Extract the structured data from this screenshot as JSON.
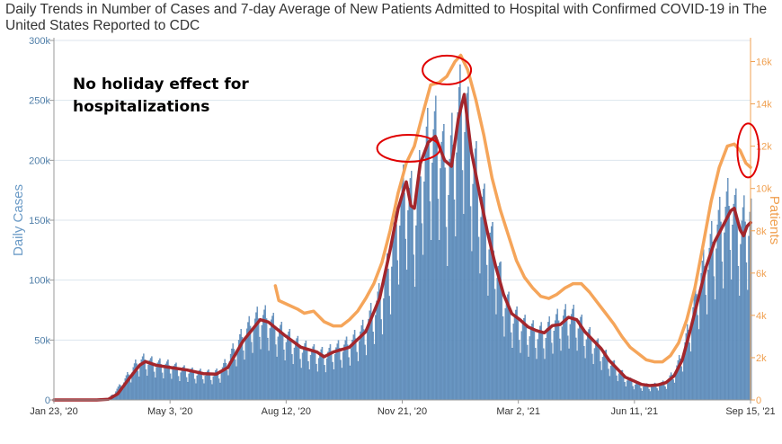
{
  "chart_data": {
    "type": "bar+line",
    "title": "Daily Trends in Number of Cases and 7-day Average of New Patients Admitted to Hospital with Confirmed COVID-19 in The United States Reported to CDC",
    "ylabel": "Daily Cases",
    "y2label": "Patients",
    "ylim": [
      0,
      300000
    ],
    "y2lim": [
      0,
      17000
    ],
    "y_ticks": [
      "0",
      "50k",
      "100k",
      "150k",
      "200k",
      "250k",
      "300k"
    ],
    "y2_ticks": [
      "0",
      "2k",
      "4k",
      "6k",
      "8k",
      "10k",
      "12k",
      "14k",
      "16k"
    ],
    "x_ticks": [
      "Jan 23, '20",
      "May 3, '20",
      "Aug 12, '20",
      "Nov 21, '20",
      "Mar 2, '21",
      "Jun 11, '21",
      "Sep 15, '21"
    ],
    "x_range": [
      "2020-01-23",
      "2021-09-15"
    ],
    "grid": true,
    "annotation": "No holiday effect for hospitalizations",
    "colors": {
      "bars": "#6f9cc8",
      "bar_edge": "#3f6f9f",
      "cases_7day_avg": "#a3262c",
      "patients_7day_avg": "#f5a55a",
      "circles": "#e00000",
      "grid": "#dce6ee"
    },
    "series": [
      {
        "kind": "bar",
        "axis": "left",
        "points": [
          [
            "2020-01-23",
            0
          ],
          [
            "2020-02-15",
            0
          ],
          [
            "2020-03-01",
            100
          ],
          [
            "2020-03-10",
            1000
          ],
          [
            "2020-03-20",
            12000
          ],
          [
            "2020-03-28",
            22000
          ],
          [
            "2020-04-04",
            31000
          ],
          [
            "2020-04-10",
            33000
          ],
          [
            "2020-04-18",
            30000
          ],
          [
            "2020-04-25",
            29000
          ],
          [
            "2020-05-03",
            28000
          ],
          [
            "2020-05-10",
            25000
          ],
          [
            "2020-05-17",
            24000
          ],
          [
            "2020-05-24",
            22000
          ],
          [
            "2020-05-31",
            22000
          ],
          [
            "2020-06-07",
            21000
          ],
          [
            "2020-06-14",
            23000
          ],
          [
            "2020-06-21",
            33000
          ],
          [
            "2020-06-28",
            45000
          ],
          [
            "2020-07-05",
            54000
          ],
          [
            "2020-07-12",
            63000
          ],
          [
            "2020-07-19",
            68000
          ],
          [
            "2020-07-26",
            66000
          ],
          [
            "2020-08-02",
            58000
          ],
          [
            "2020-08-09",
            53000
          ],
          [
            "2020-08-16",
            48000
          ],
          [
            "2020-08-23",
            43000
          ],
          [
            "2020-08-30",
            41000
          ],
          [
            "2020-09-06",
            38000
          ],
          [
            "2020-09-13",
            37000
          ],
          [
            "2020-09-20",
            41000
          ],
          [
            "2020-09-27",
            43000
          ],
          [
            "2020-10-04",
            46000
          ],
          [
            "2020-10-11",
            52000
          ],
          [
            "2020-10-18",
            60000
          ],
          [
            "2020-10-25",
            75000
          ],
          [
            "2020-11-01",
            88000
          ],
          [
            "2020-11-08",
            115000
          ],
          [
            "2020-11-15",
            155000
          ],
          [
            "2020-11-22",
            175000
          ],
          [
            "2020-11-29",
            152000
          ],
          [
            "2020-12-06",
            195000
          ],
          [
            "2020-12-13",
            215000
          ],
          [
            "2020-12-20",
            215000
          ],
          [
            "2020-12-27",
            180000
          ],
          [
            "2021-01-03",
            220000
          ],
          [
            "2021-01-10",
            250000
          ],
          [
            "2021-01-17",
            200000
          ],
          [
            "2021-01-24",
            170000
          ],
          [
            "2021-01-31",
            140000
          ],
          [
            "2021-02-07",
            115000
          ],
          [
            "2021-02-14",
            85000
          ],
          [
            "2021-02-21",
            70000
          ],
          [
            "2021-02-28",
            63000
          ],
          [
            "2021-03-07",
            58000
          ],
          [
            "2021-03-14",
            55000
          ],
          [
            "2021-03-21",
            55000
          ],
          [
            "2021-03-28",
            62000
          ],
          [
            "2021-04-04",
            66000
          ],
          [
            "2021-04-11",
            69000
          ],
          [
            "2021-04-18",
            66000
          ],
          [
            "2021-04-25",
            56000
          ],
          [
            "2021-05-02",
            48000
          ],
          [
            "2021-05-09",
            40000
          ],
          [
            "2021-05-16",
            32000
          ],
          [
            "2021-05-23",
            25000
          ],
          [
            "2021-05-30",
            18000
          ],
          [
            "2021-06-06",
            14000
          ],
          [
            "2021-06-13",
            12000
          ],
          [
            "2021-06-20",
            11500
          ],
          [
            "2021-06-27",
            12500
          ],
          [
            "2021-07-04",
            14500
          ],
          [
            "2021-07-11",
            23000
          ],
          [
            "2021-07-18",
            38000
          ],
          [
            "2021-07-25",
            65000
          ],
          [
            "2021-08-01",
            95000
          ],
          [
            "2021-08-08",
            115000
          ],
          [
            "2021-08-15",
            135000
          ],
          [
            "2021-08-22",
            150000
          ],
          [
            "2021-08-29",
            162000
          ],
          [
            "2021-09-05",
            140000
          ],
          [
            "2021-09-12",
            148000
          ],
          [
            "2021-09-15",
            150000
          ]
        ]
      },
      {
        "kind": "line",
        "name": "cases_7day_avg",
        "axis": "left",
        "points": [
          [
            "2020-01-23",
            0
          ],
          [
            "2020-02-29",
            0
          ],
          [
            "2020-03-10",
            500
          ],
          [
            "2020-03-18",
            5000
          ],
          [
            "2020-03-28",
            18000
          ],
          [
            "2020-04-06",
            29000
          ],
          [
            "2020-04-11",
            32000
          ],
          [
            "2020-04-20",
            29000
          ],
          [
            "2020-05-03",
            27000
          ],
          [
            "2020-05-17",
            25000
          ],
          [
            "2020-05-31",
            22000
          ],
          [
            "2020-06-11",
            21500
          ],
          [
            "2020-06-21",
            27000
          ],
          [
            "2020-07-04",
            49000
          ],
          [
            "2020-07-19",
            67000
          ],
          [
            "2020-07-26",
            65000
          ],
          [
            "2020-08-09",
            54000
          ],
          [
            "2020-08-23",
            44000
          ],
          [
            "2020-09-06",
            40000
          ],
          [
            "2020-09-12",
            36000
          ],
          [
            "2020-09-20",
            40000
          ],
          [
            "2020-10-04",
            44000
          ],
          [
            "2020-10-18",
            57000
          ],
          [
            "2020-10-30",
            85000
          ],
          [
            "2020-11-08",
            125000
          ],
          [
            "2020-11-15",
            160000
          ],
          [
            "2020-11-22",
            182000
          ],
          [
            "2020-11-26",
            162000
          ],
          [
            "2020-11-29",
            160000
          ],
          [
            "2020-12-04",
            197000
          ],
          [
            "2020-12-11",
            215000
          ],
          [
            "2020-12-17",
            220000
          ],
          [
            "2020-12-25",
            200000
          ],
          [
            "2020-12-31",
            195000
          ],
          [
            "2021-01-06",
            235000
          ],
          [
            "2021-01-11",
            255000
          ],
          [
            "2021-01-17",
            208000
          ],
          [
            "2021-01-24",
            173000
          ],
          [
            "2021-01-31",
            140000
          ],
          [
            "2021-02-07",
            112000
          ],
          [
            "2021-02-14",
            88000
          ],
          [
            "2021-02-21",
            72000
          ],
          [
            "2021-02-28",
            67000
          ],
          [
            "2021-03-07",
            61000
          ],
          [
            "2021-03-14",
            58000
          ],
          [
            "2021-03-21",
            56000
          ],
          [
            "2021-03-28",
            62000
          ],
          [
            "2021-04-04",
            63000
          ],
          [
            "2021-04-11",
            69000
          ],
          [
            "2021-04-18",
            67000
          ],
          [
            "2021-04-25",
            57000
          ],
          [
            "2021-05-02",
            50000
          ],
          [
            "2021-05-09",
            43000
          ],
          [
            "2021-05-16",
            33000
          ],
          [
            "2021-05-23",
            26000
          ],
          [
            "2021-05-30",
            19000
          ],
          [
            "2021-06-06",
            16000
          ],
          [
            "2021-06-13",
            13000
          ],
          [
            "2021-06-20",
            12000
          ],
          [
            "2021-06-27",
            12500
          ],
          [
            "2021-07-04",
            14500
          ],
          [
            "2021-07-11",
            20000
          ],
          [
            "2021-07-18",
            33000
          ],
          [
            "2021-07-25",
            58000
          ],
          [
            "2021-08-01",
            85000
          ],
          [
            "2021-08-08",
            112000
          ],
          [
            "2021-08-15",
            132000
          ],
          [
            "2021-08-22",
            145000
          ],
          [
            "2021-08-29",
            158000
          ],
          [
            "2021-09-01",
            160000
          ],
          [
            "2021-09-06",
            142000
          ],
          [
            "2021-09-09",
            137000
          ],
          [
            "2021-09-12",
            145000
          ],
          [
            "2021-09-15",
            148000
          ]
        ]
      },
      {
        "kind": "line",
        "name": "patients_7day_avg",
        "axis": "right",
        "points": [
          [
            "2020-08-01",
            5400
          ],
          [
            "2020-08-04",
            4700
          ],
          [
            "2020-08-12",
            4500
          ],
          [
            "2020-08-20",
            4300
          ],
          [
            "2020-08-26",
            4100
          ],
          [
            "2020-09-03",
            4200
          ],
          [
            "2020-09-12",
            3700
          ],
          [
            "2020-09-20",
            3500
          ],
          [
            "2020-09-27",
            3500
          ],
          [
            "2020-10-04",
            3800
          ],
          [
            "2020-10-11",
            4200
          ],
          [
            "2020-10-18",
            4800
          ],
          [
            "2020-10-25",
            5500
          ],
          [
            "2020-11-01",
            6500
          ],
          [
            "2020-11-08",
            8000
          ],
          [
            "2020-11-15",
            9800
          ],
          [
            "2020-11-22",
            11200
          ],
          [
            "2020-11-29",
            12000
          ],
          [
            "2020-12-06",
            13500
          ],
          [
            "2020-12-13",
            14900
          ],
          [
            "2020-12-20",
            15000
          ],
          [
            "2020-12-27",
            15300
          ],
          [
            "2021-01-03",
            16000
          ],
          [
            "2021-01-08",
            16300
          ],
          [
            "2021-01-14",
            15600
          ],
          [
            "2021-01-21",
            14200
          ],
          [
            "2021-01-28",
            12500
          ],
          [
            "2021-02-04",
            10500
          ],
          [
            "2021-02-11",
            9000
          ],
          [
            "2021-02-18",
            7800
          ],
          [
            "2021-02-25",
            6600
          ],
          [
            "2021-03-04",
            5800
          ],
          [
            "2021-03-11",
            5300
          ],
          [
            "2021-03-18",
            4900
          ],
          [
            "2021-03-25",
            4800
          ],
          [
            "2021-04-01",
            5000
          ],
          [
            "2021-04-08",
            5300
          ],
          [
            "2021-04-15",
            5500
          ],
          [
            "2021-04-22",
            5500
          ],
          [
            "2021-04-29",
            5100
          ],
          [
            "2021-05-06",
            4600
          ],
          [
            "2021-05-13",
            4100
          ],
          [
            "2021-05-20",
            3600
          ],
          [
            "2021-05-27",
            3000
          ],
          [
            "2021-06-03",
            2500
          ],
          [
            "2021-06-10",
            2200
          ],
          [
            "2021-06-17",
            1900
          ],
          [
            "2021-06-24",
            1800
          ],
          [
            "2021-07-01",
            1800
          ],
          [
            "2021-07-08",
            2100
          ],
          [
            "2021-07-15",
            2700
          ],
          [
            "2021-07-22",
            3800
          ],
          [
            "2021-07-29",
            5300
          ],
          [
            "2021-08-05",
            7300
          ],
          [
            "2021-08-12",
            9400
          ],
          [
            "2021-08-19",
            11000
          ],
          [
            "2021-08-26",
            12000
          ],
          [
            "2021-09-01",
            12100
          ],
          [
            "2021-09-06",
            11800
          ],
          [
            "2021-09-11",
            11200
          ],
          [
            "2021-09-15",
            11000
          ]
        ]
      }
    ]
  }
}
